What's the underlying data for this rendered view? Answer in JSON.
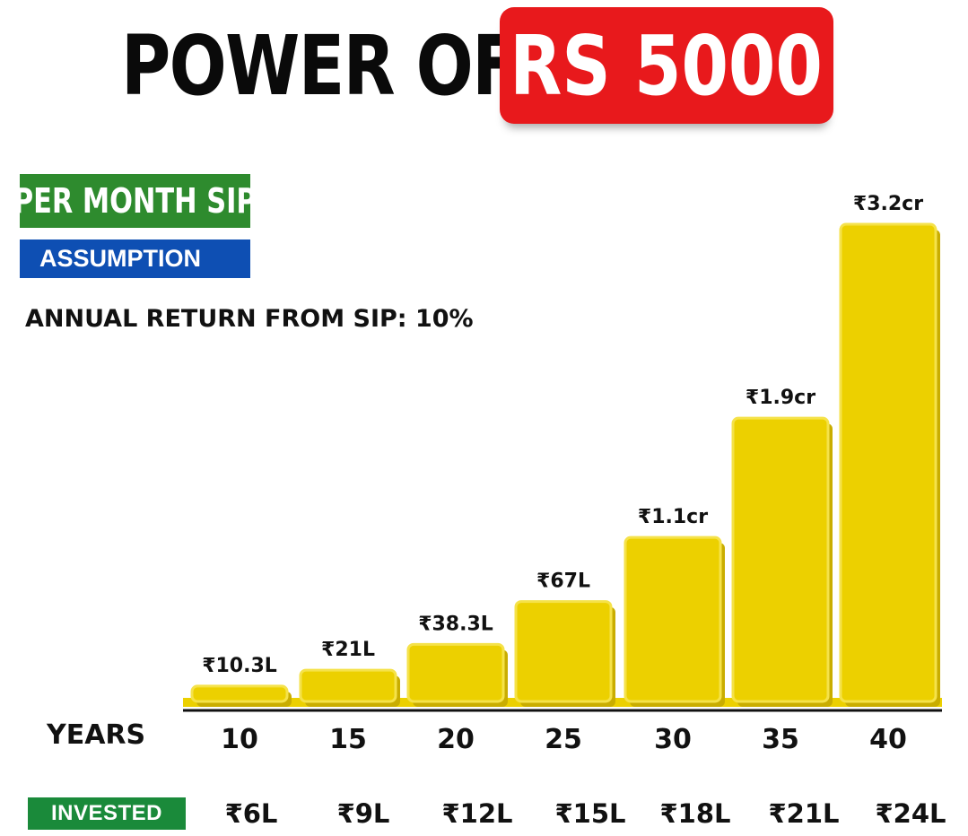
{
  "header": {
    "title_prefix": "POWER OF",
    "title_highlight": "RS 5000",
    "highlight_color": "#e8191c"
  },
  "badges": {
    "sip": "PER MONTH SIP",
    "assumption": "ASSUMPTION",
    "annual_return": "ANNUAL RETURN FROM SIP: 10%"
  },
  "rows": {
    "years_label": "YEARS",
    "invested_label": "INVESTED"
  },
  "chart_data": {
    "type": "bar",
    "categories": [
      "10",
      "15",
      "20",
      "25",
      "30",
      "35",
      "40"
    ],
    "values": [
      10.3,
      21,
      38.3,
      67,
      110,
      190,
      320
    ],
    "value_unit": "lakh",
    "data_labels": [
      "₹10.3L",
      "₹21L",
      "₹38.3L",
      "₹67L",
      "₹1.1cr",
      "₹1.9cr",
      "₹3.2cr"
    ],
    "invested": [
      "₹6L",
      "₹9L",
      "₹12L",
      "₹15L",
      "₹18L",
      "₹21L",
      "₹24L"
    ],
    "xlabel": "YEARS",
    "ylabel": "",
    "title": "POWER OF RS 5000",
    "bar_color": "#ecd000",
    "grid": false,
    "legend": "none"
  }
}
